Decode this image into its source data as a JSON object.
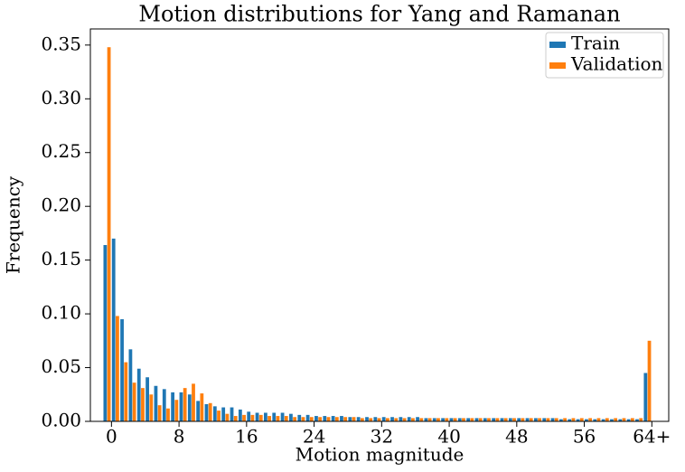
{
  "chart_data": {
    "type": "bar",
    "title": "Motion distributions for Yang and Ramanan",
    "x_label": "Motion magnitude",
    "y_label": "Frequency",
    "x": [
      0,
      1,
      2,
      3,
      4,
      5,
      6,
      7,
      8,
      9,
      10,
      11,
      12,
      13,
      14,
      15,
      16,
      17,
      18,
      19,
      20,
      21,
      22,
      23,
      24,
      25,
      26,
      27,
      28,
      29,
      30,
      31,
      32,
      33,
      34,
      35,
      36,
      37,
      38,
      39,
      40,
      41,
      42,
      43,
      44,
      45,
      46,
      47,
      48,
      49,
      50,
      51,
      52,
      53,
      54,
      55,
      56,
      57,
      58,
      59,
      60,
      61,
      62,
      63,
      64
    ],
    "series": [
      {
        "name": "Train",
        "color": "#1f77b4",
        "values": [
          0.164,
          0.17,
          0.095,
          0.067,
          0.049,
          0.041,
          0.033,
          0.03,
          0.027,
          0.027,
          0.025,
          0.019,
          0.016,
          0.014,
          0.013,
          0.013,
          0.011,
          0.009,
          0.008,
          0.008,
          0.008,
          0.008,
          0.007,
          0.006,
          0.006,
          0.005,
          0.005,
          0.005,
          0.005,
          0.004,
          0.004,
          0.004,
          0.004,
          0.004,
          0.004,
          0.004,
          0.004,
          0.004,
          0.003,
          0.003,
          0.003,
          0.003,
          0.003,
          0.003,
          0.003,
          0.003,
          0.003,
          0.003,
          0.003,
          0.003,
          0.003,
          0.003,
          0.003,
          0.003,
          0.002,
          0.002,
          0.002,
          0.002,
          0.002,
          0.002,
          0.002,
          0.002,
          0.002,
          0.002,
          0.045
        ]
      },
      {
        "name": "Validation",
        "color": "#ff7f0e",
        "values": [
          0.348,
          0.098,
          0.055,
          0.036,
          0.031,
          0.025,
          0.015,
          0.012,
          0.02,
          0.031,
          0.035,
          0.026,
          0.017,
          0.01,
          0.007,
          0.005,
          0.006,
          0.006,
          0.006,
          0.005,
          0.005,
          0.005,
          0.004,
          0.004,
          0.004,
          0.004,
          0.004,
          0.004,
          0.004,
          0.004,
          0.003,
          0.003,
          0.003,
          0.003,
          0.003,
          0.003,
          0.003,
          0.003,
          0.003,
          0.003,
          0.003,
          0.003,
          0.003,
          0.003,
          0.003,
          0.003,
          0.003,
          0.003,
          0.003,
          0.003,
          0.003,
          0.003,
          0.003,
          0.003,
          0.003,
          0.003,
          0.003,
          0.003,
          0.003,
          0.003,
          0.003,
          0.003,
          0.003,
          0.003,
          0.075
        ]
      }
    ],
    "xlim": [
      -2.5,
      66
    ],
    "xticks": [
      0,
      8,
      16,
      24,
      32,
      40,
      48,
      56,
      {
        "value": 64,
        "label": "64+"
      }
    ],
    "ylim": [
      0,
      0.365
    ],
    "yticks": [
      {
        "value": 0,
        "label": "0.00"
      },
      {
        "value": 0.05,
        "label": "0.05"
      },
      {
        "value": 0.1,
        "label": "0.10"
      },
      {
        "value": 0.15,
        "label": "0.15"
      },
      {
        "value": 0.2,
        "label": "0.20"
      },
      {
        "value": 0.25,
        "label": "0.25"
      },
      {
        "value": 0.3,
        "label": "0.30"
      },
      {
        "value": 0.35,
        "label": "0.35"
      }
    ],
    "legend": "upper right"
  }
}
